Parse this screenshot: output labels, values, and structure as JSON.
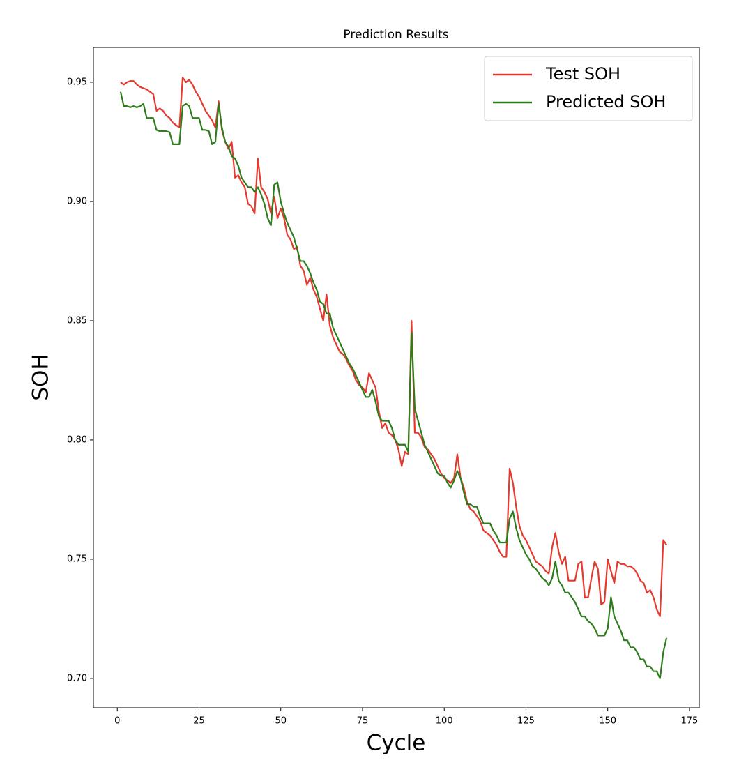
{
  "chart_data": {
    "type": "line",
    "title": "Prediction Results",
    "x_label": "Cycle",
    "y_label": "SOH",
    "x": [
      1,
      2,
      3,
      4,
      5,
      6,
      7,
      8,
      9,
      10,
      11,
      12,
      13,
      14,
      15,
      16,
      17,
      18,
      19,
      20,
      21,
      22,
      23,
      24,
      25,
      26,
      27,
      28,
      29,
      30,
      31,
      32,
      33,
      34,
      35,
      36,
      37,
      38,
      39,
      40,
      41,
      42,
      43,
      44,
      45,
      46,
      47,
      48,
      49,
      50,
      51,
      52,
      53,
      54,
      55,
      56,
      57,
      58,
      59,
      60,
      61,
      62,
      63,
      64,
      65,
      66,
      67,
      68,
      69,
      70,
      71,
      72,
      73,
      74,
      75,
      76,
      77,
      78,
      79,
      80,
      81,
      82,
      83,
      84,
      85,
      86,
      87,
      88,
      89,
      90,
      91,
      92,
      93,
      94,
      95,
      96,
      97,
      98,
      99,
      100,
      101,
      102,
      103,
      104,
      105,
      106,
      107,
      108,
      109,
      110,
      111,
      112,
      113,
      114,
      115,
      116,
      117,
      118,
      119,
      120,
      121,
      122,
      123,
      124,
      125,
      126,
      127,
      128,
      129,
      130,
      131,
      132,
      133,
      134,
      135,
      136,
      137,
      138,
      139,
      140,
      141,
      142,
      143,
      144,
      145,
      146,
      147,
      148,
      149,
      150,
      151,
      152,
      153,
      154,
      155,
      156,
      157,
      158,
      159,
      160,
      161,
      162,
      163,
      164,
      165,
      166,
      167,
      168
    ],
    "series": [
      {
        "name": "Test SOH",
        "color": "#e5392d",
        "values": [
          0.95,
          0.949,
          0.95,
          0.9505,
          0.9505,
          0.949,
          0.948,
          0.9475,
          0.947,
          0.946,
          0.945,
          0.938,
          0.939,
          0.938,
          0.936,
          0.935,
          0.933,
          0.932,
          0.931,
          0.952,
          0.95,
          0.951,
          0.949,
          0.946,
          0.944,
          0.941,
          0.938,
          0.936,
          0.934,
          0.931,
          0.942,
          0.93,
          0.925,
          0.922,
          0.925,
          0.91,
          0.911,
          0.908,
          0.906,
          0.899,
          0.898,
          0.895,
          0.918,
          0.906,
          0.904,
          0.901,
          0.895,
          0.902,
          0.893,
          0.897,
          0.893,
          0.886,
          0.884,
          0.88,
          0.881,
          0.873,
          0.871,
          0.865,
          0.868,
          0.863,
          0.86,
          0.855,
          0.85,
          0.861,
          0.848,
          0.843,
          0.84,
          0.837,
          0.836,
          0.834,
          0.831,
          0.829,
          0.825,
          0.823,
          0.822,
          0.82,
          0.828,
          0.825,
          0.822,
          0.812,
          0.805,
          0.807,
          0.803,
          0.802,
          0.8,
          0.796,
          0.789,
          0.795,
          0.794,
          0.85,
          0.803,
          0.803,
          0.801,
          0.797,
          0.796,
          0.794,
          0.792,
          0.789,
          0.786,
          0.784,
          0.783,
          0.782,
          0.784,
          0.794,
          0.784,
          0.78,
          0.774,
          0.771,
          0.77,
          0.768,
          0.766,
          0.762,
          0.761,
          0.76,
          0.758,
          0.756,
          0.753,
          0.751,
          0.751,
          0.788,
          0.782,
          0.772,
          0.764,
          0.76,
          0.758,
          0.755,
          0.752,
          0.749,
          0.748,
          0.747,
          0.745,
          0.744,
          0.755,
          0.761,
          0.753,
          0.748,
          0.751,
          0.741,
          0.741,
          0.741,
          0.748,
          0.749,
          0.734,
          0.734,
          0.742,
          0.749,
          0.746,
          0.731,
          0.732,
          0.75,
          0.745,
          0.74,
          0.749,
          0.748,
          0.748,
          0.747,
          0.747,
          0.746,
          0.744,
          0.741,
          0.74,
          0.736,
          0.737,
          0.734,
          0.729,
          0.726,
          0.758,
          0.756
        ]
      },
      {
        "name": "Predicted SOH",
        "color": "#2e7d1c",
        "values": [
          0.946,
          0.94,
          0.94,
          0.9395,
          0.94,
          0.9395,
          0.94,
          0.941,
          0.935,
          0.935,
          0.935,
          0.93,
          0.9295,
          0.9295,
          0.9295,
          0.929,
          0.924,
          0.924,
          0.924,
          0.94,
          0.941,
          0.94,
          0.935,
          0.935,
          0.935,
          0.93,
          0.93,
          0.9295,
          0.924,
          0.925,
          0.941,
          0.931,
          0.925,
          0.923,
          0.919,
          0.918,
          0.915,
          0.91,
          0.908,
          0.906,
          0.906,
          0.904,
          0.906,
          0.903,
          0.899,
          0.893,
          0.89,
          0.907,
          0.908,
          0.9,
          0.895,
          0.891,
          0.888,
          0.885,
          0.88,
          0.875,
          0.875,
          0.873,
          0.87,
          0.866,
          0.863,
          0.858,
          0.857,
          0.853,
          0.853,
          0.847,
          0.844,
          0.841,
          0.838,
          0.835,
          0.832,
          0.83,
          0.827,
          0.824,
          0.821,
          0.818,
          0.818,
          0.821,
          0.816,
          0.81,
          0.808,
          0.808,
          0.808,
          0.805,
          0.8,
          0.798,
          0.798,
          0.798,
          0.795,
          0.845,
          0.813,
          0.808,
          0.803,
          0.798,
          0.795,
          0.792,
          0.789,
          0.786,
          0.785,
          0.785,
          0.782,
          0.78,
          0.783,
          0.787,
          0.784,
          0.778,
          0.773,
          0.773,
          0.772,
          0.772,
          0.768,
          0.765,
          0.765,
          0.765,
          0.762,
          0.76,
          0.757,
          0.757,
          0.757,
          0.767,
          0.77,
          0.763,
          0.758,
          0.755,
          0.752,
          0.75,
          0.747,
          0.746,
          0.744,
          0.742,
          0.741,
          0.739,
          0.742,
          0.749,
          0.741,
          0.739,
          0.736,
          0.736,
          0.734,
          0.732,
          0.729,
          0.726,
          0.726,
          0.724,
          0.723,
          0.721,
          0.718,
          0.718,
          0.718,
          0.721,
          0.734,
          0.726,
          0.723,
          0.72,
          0.716,
          0.716,
          0.713,
          0.713,
          0.711,
          0.708,
          0.708,
          0.705,
          0.705,
          0.703,
          0.703,
          0.7,
          0.711,
          0.717
        ]
      }
    ],
    "xlim": [
      -7.3,
      178
    ],
    "ylim": [
      0.6877,
      0.9646
    ],
    "xticks": [
      0,
      25,
      50,
      75,
      100,
      125,
      150,
      175
    ],
    "yticks": [
      {
        "value": 0.7,
        "label": "0.70"
      },
      {
        "value": 0.75,
        "label": "0.75"
      },
      {
        "value": 0.8,
        "label": "0.80"
      },
      {
        "value": 0.85,
        "label": "0.85"
      },
      {
        "value": 0.9,
        "label": "0.90"
      },
      {
        "value": 0.95,
        "label": "0.95"
      }
    ],
    "legend": "upper right"
  }
}
